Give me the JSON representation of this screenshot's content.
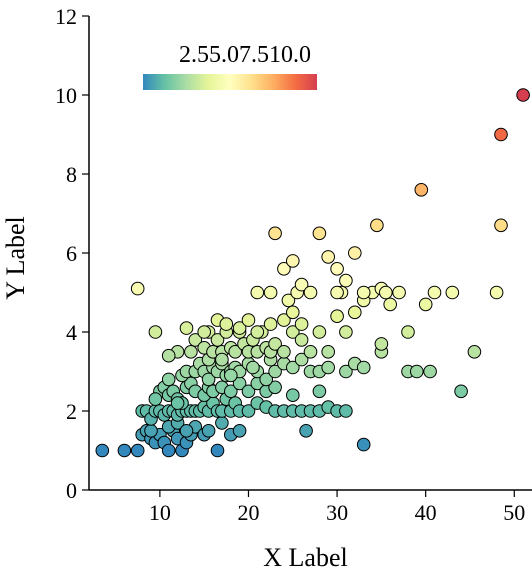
{
  "chart_data": {
    "type": "scatter",
    "title": "",
    "xlabel": "X Label",
    "ylabel": "Y Label",
    "xlim": [
      2,
      52
    ],
    "ylim": [
      0,
      12
    ],
    "xticks": [
      10,
      20,
      30,
      40,
      50
    ],
    "yticks": [
      0,
      2,
      4,
      6,
      8,
      10,
      12
    ],
    "grid": false,
    "colorbar": {
      "colormap": "Spectral_r",
      "range": [
        1,
        10
      ],
      "tick_text": "2.55.07.510.0",
      "placement": "top-left inside axes",
      "stops": [
        "#3288bd",
        "#66c2a5",
        "#abdda4",
        "#e6f598",
        "#ffffbf",
        "#fee08b",
        "#fdae61",
        "#f46d43",
        "#d53e4f"
      ]
    },
    "marker": {
      "edge_color": "#000000",
      "shape": "circle"
    },
    "points": [
      [
        3.5,
        1.0
      ],
      [
        6.0,
        1.0
      ],
      [
        7.5,
        1.0
      ],
      [
        8.0,
        1.4
      ],
      [
        8.5,
        1.5
      ],
      [
        9.0,
        1.3
      ],
      [
        9.5,
        1.2
      ],
      [
        10.0,
        1.4
      ],
      [
        10.5,
        1.2
      ],
      [
        11.0,
        1.0
      ],
      [
        11.5,
        1.5
      ],
      [
        12.0,
        1.3
      ],
      [
        12.5,
        1.0
      ],
      [
        13.0,
        1.2
      ],
      [
        13.5,
        1.4
      ],
      [
        14.0,
        1.6
      ],
      [
        15.0,
        1.4
      ],
      [
        15.5,
        1.5
      ],
      [
        16.5,
        1.0
      ],
      [
        17.0,
        1.7
      ],
      [
        18.0,
        1.4
      ],
      [
        19.0,
        1.5
      ],
      [
        26.5,
        1.5
      ],
      [
        33.0,
        1.15
      ],
      [
        11.0,
        1.6
      ],
      [
        12.0,
        1.7
      ],
      [
        9.0,
        1.5
      ],
      [
        13.0,
        1.5
      ],
      [
        8.0,
        2.0
      ],
      [
        8.5,
        2.0
      ],
      [
        9.0,
        1.8
      ],
      [
        9.5,
        2.0
      ],
      [
        10.0,
        2.0
      ],
      [
        10.5,
        1.9
      ],
      [
        11.0,
        2.0
      ],
      [
        11.5,
        2.0
      ],
      [
        12.0,
        1.9
      ],
      [
        12.5,
        2.0
      ],
      [
        13.0,
        2.0
      ],
      [
        13.5,
        2.0
      ],
      [
        14.0,
        2.0
      ],
      [
        14.5,
        2.0
      ],
      [
        15.0,
        2.1
      ],
      [
        15.5,
        2.0
      ],
      [
        16.0,
        2.2
      ],
      [
        16.5,
        2.0
      ],
      [
        17.0,
        2.0
      ],
      [
        17.5,
        2.3
      ],
      [
        18.0,
        2.0
      ],
      [
        18.5,
        2.2
      ],
      [
        19.0,
        2.0
      ],
      [
        20.0,
        2.0
      ],
      [
        21.0,
        2.2
      ],
      [
        22.0,
        2.1
      ],
      [
        23.0,
        2.0
      ],
      [
        24.0,
        2.0
      ],
      [
        25.0,
        2.0
      ],
      [
        26.0,
        2.0
      ],
      [
        27.0,
        2.0
      ],
      [
        28.0,
        2.0
      ],
      [
        29.0,
        2.1
      ],
      [
        30.0,
        2.0
      ],
      [
        31.0,
        2.0
      ],
      [
        10.0,
        2.5
      ],
      [
        10.5,
        2.6
      ],
      [
        11.0,
        2.4
      ],
      [
        11.5,
        2.5
      ],
      [
        12.0,
        2.3
      ],
      [
        12.5,
        2.2
      ],
      [
        13.0,
        2.6
      ],
      [
        13.5,
        2.7
      ],
      [
        14.0,
        2.5
      ],
      [
        15.0,
        2.4
      ],
      [
        15.5,
        2.6
      ],
      [
        16.0,
        2.5
      ],
      [
        17.0,
        2.6
      ],
      [
        18.0,
        2.5
      ],
      [
        19.0,
        2.7
      ],
      [
        20.0,
        2.5
      ],
      [
        21.0,
        2.7
      ],
      [
        22.0,
        2.5
      ],
      [
        23.0,
        2.6
      ],
      [
        25.0,
        2.4
      ],
      [
        28.0,
        2.5
      ],
      [
        9.5,
        2.3
      ],
      [
        12.0,
        2.2
      ],
      [
        11.0,
        2.8
      ],
      [
        12.5,
        2.9
      ],
      [
        13.0,
        3.0
      ],
      [
        14.0,
        3.0
      ],
      [
        14.5,
        3.2
      ],
      [
        15.0,
        3.0
      ],
      [
        15.5,
        2.8
      ],
      [
        16.0,
        3.1
      ],
      [
        16.5,
        3.0
      ],
      [
        17.0,
        3.2
      ],
      [
        17.5,
        2.9
      ],
      [
        18.0,
        3.0
      ],
      [
        18.5,
        3.1
      ],
      [
        19.0,
        3.0
      ],
      [
        20.0,
        3.2
      ],
      [
        21.0,
        3.0
      ],
      [
        22.0,
        2.8
      ],
      [
        23.0,
        3.0
      ],
      [
        24.0,
        3.2
      ],
      [
        25.0,
        3.1
      ],
      [
        26.0,
        3.3
      ],
      [
        27.0,
        3.0
      ],
      [
        28.0,
        3.0
      ],
      [
        29.0,
        3.1
      ],
      [
        31.0,
        3.0
      ],
      [
        32.0,
        3.2
      ],
      [
        33.0,
        3.1
      ],
      [
        35.0,
        3.5
      ],
      [
        38.0,
        3.0
      ],
      [
        39.0,
        3.0
      ],
      [
        40.5,
        3.0
      ],
      [
        44.0,
        2.5
      ],
      [
        15.5,
        3.3
      ],
      [
        18.0,
        2.9
      ],
      [
        20.5,
        3.1
      ],
      [
        22.5,
        3.3
      ],
      [
        12.0,
        3.5
      ],
      [
        13.5,
        3.5
      ],
      [
        14.0,
        3.8
      ],
      [
        15.0,
        3.6
      ],
      [
        15.5,
        4.0
      ],
      [
        16.0,
        3.5
      ],
      [
        16.5,
        3.8
      ],
      [
        17.0,
        3.5
      ],
      [
        17.5,
        4.0
      ],
      [
        18.0,
        3.6
      ],
      [
        18.5,
        3.5
      ],
      [
        19.0,
        4.0
      ],
      [
        19.5,
        3.7
      ],
      [
        20.0,
        3.5
      ],
      [
        20.5,
        3.8
      ],
      [
        21.0,
        3.5
      ],
      [
        21.5,
        4.0
      ],
      [
        22.0,
        3.6
      ],
      [
        22.5,
        3.5
      ],
      [
        23.0,
        3.7
      ],
      [
        24.0,
        3.5
      ],
      [
        25.0,
        4.0
      ],
      [
        26.0,
        3.8
      ],
      [
        27.0,
        3.5
      ],
      [
        29.0,
        3.5
      ],
      [
        31.0,
        4.0
      ],
      [
        35.0,
        3.7
      ],
      [
        38.0,
        4.0
      ],
      [
        45.5,
        3.5
      ],
      [
        17.0,
        3.3
      ],
      [
        11.0,
        3.4
      ],
      [
        9.5,
        4.0
      ],
      [
        13.0,
        4.1
      ],
      [
        15.0,
        4.0
      ],
      [
        16.5,
        4.3
      ],
      [
        17.5,
        4.2
      ],
      [
        19.0,
        4.1
      ],
      [
        20.0,
        4.3
      ],
      [
        21.0,
        4.0
      ],
      [
        22.5,
        4.2
      ],
      [
        24.0,
        4.3
      ],
      [
        25.0,
        4.5
      ],
      [
        26.0,
        4.2
      ],
      [
        28.0,
        4.0
      ],
      [
        30.0,
        4.4
      ],
      [
        32.0,
        4.5
      ],
      [
        33.0,
        4.8
      ],
      [
        34.0,
        5.0
      ],
      [
        35.0,
        5.1
      ],
      [
        36.0,
        4.7
      ],
      [
        37.0,
        5.0
      ],
      [
        40.0,
        4.7
      ],
      [
        41.0,
        5.0
      ],
      [
        43.0,
        5.0
      ],
      [
        48.0,
        5.0
      ],
      [
        24.5,
        4.8
      ],
      [
        21.0,
        5.0
      ],
      [
        22.5,
        5.0
      ],
      [
        24.0,
        5.6
      ],
      [
        25.0,
        5.8
      ],
      [
        25.5,
        5.0
      ],
      [
        26.0,
        5.2
      ],
      [
        27.0,
        5.0
      ],
      [
        28.0,
        6.5
      ],
      [
        29.0,
        5.9
      ],
      [
        30.0,
        5.6
      ],
      [
        30.5,
        5.0
      ],
      [
        31.0,
        5.3
      ],
      [
        32.0,
        6.0
      ],
      [
        33.0,
        5.0
      ],
      [
        23.0,
        6.5
      ],
      [
        34.5,
        6.7
      ],
      [
        7.5,
        5.1
      ],
      [
        35.5,
        5.0
      ],
      [
        30.0,
        5.0
      ],
      [
        39.5,
        7.6
      ],
      [
        48.5,
        6.7
      ],
      [
        48.5,
        9.0
      ],
      [
        51.0,
        10.0
      ]
    ]
  }
}
